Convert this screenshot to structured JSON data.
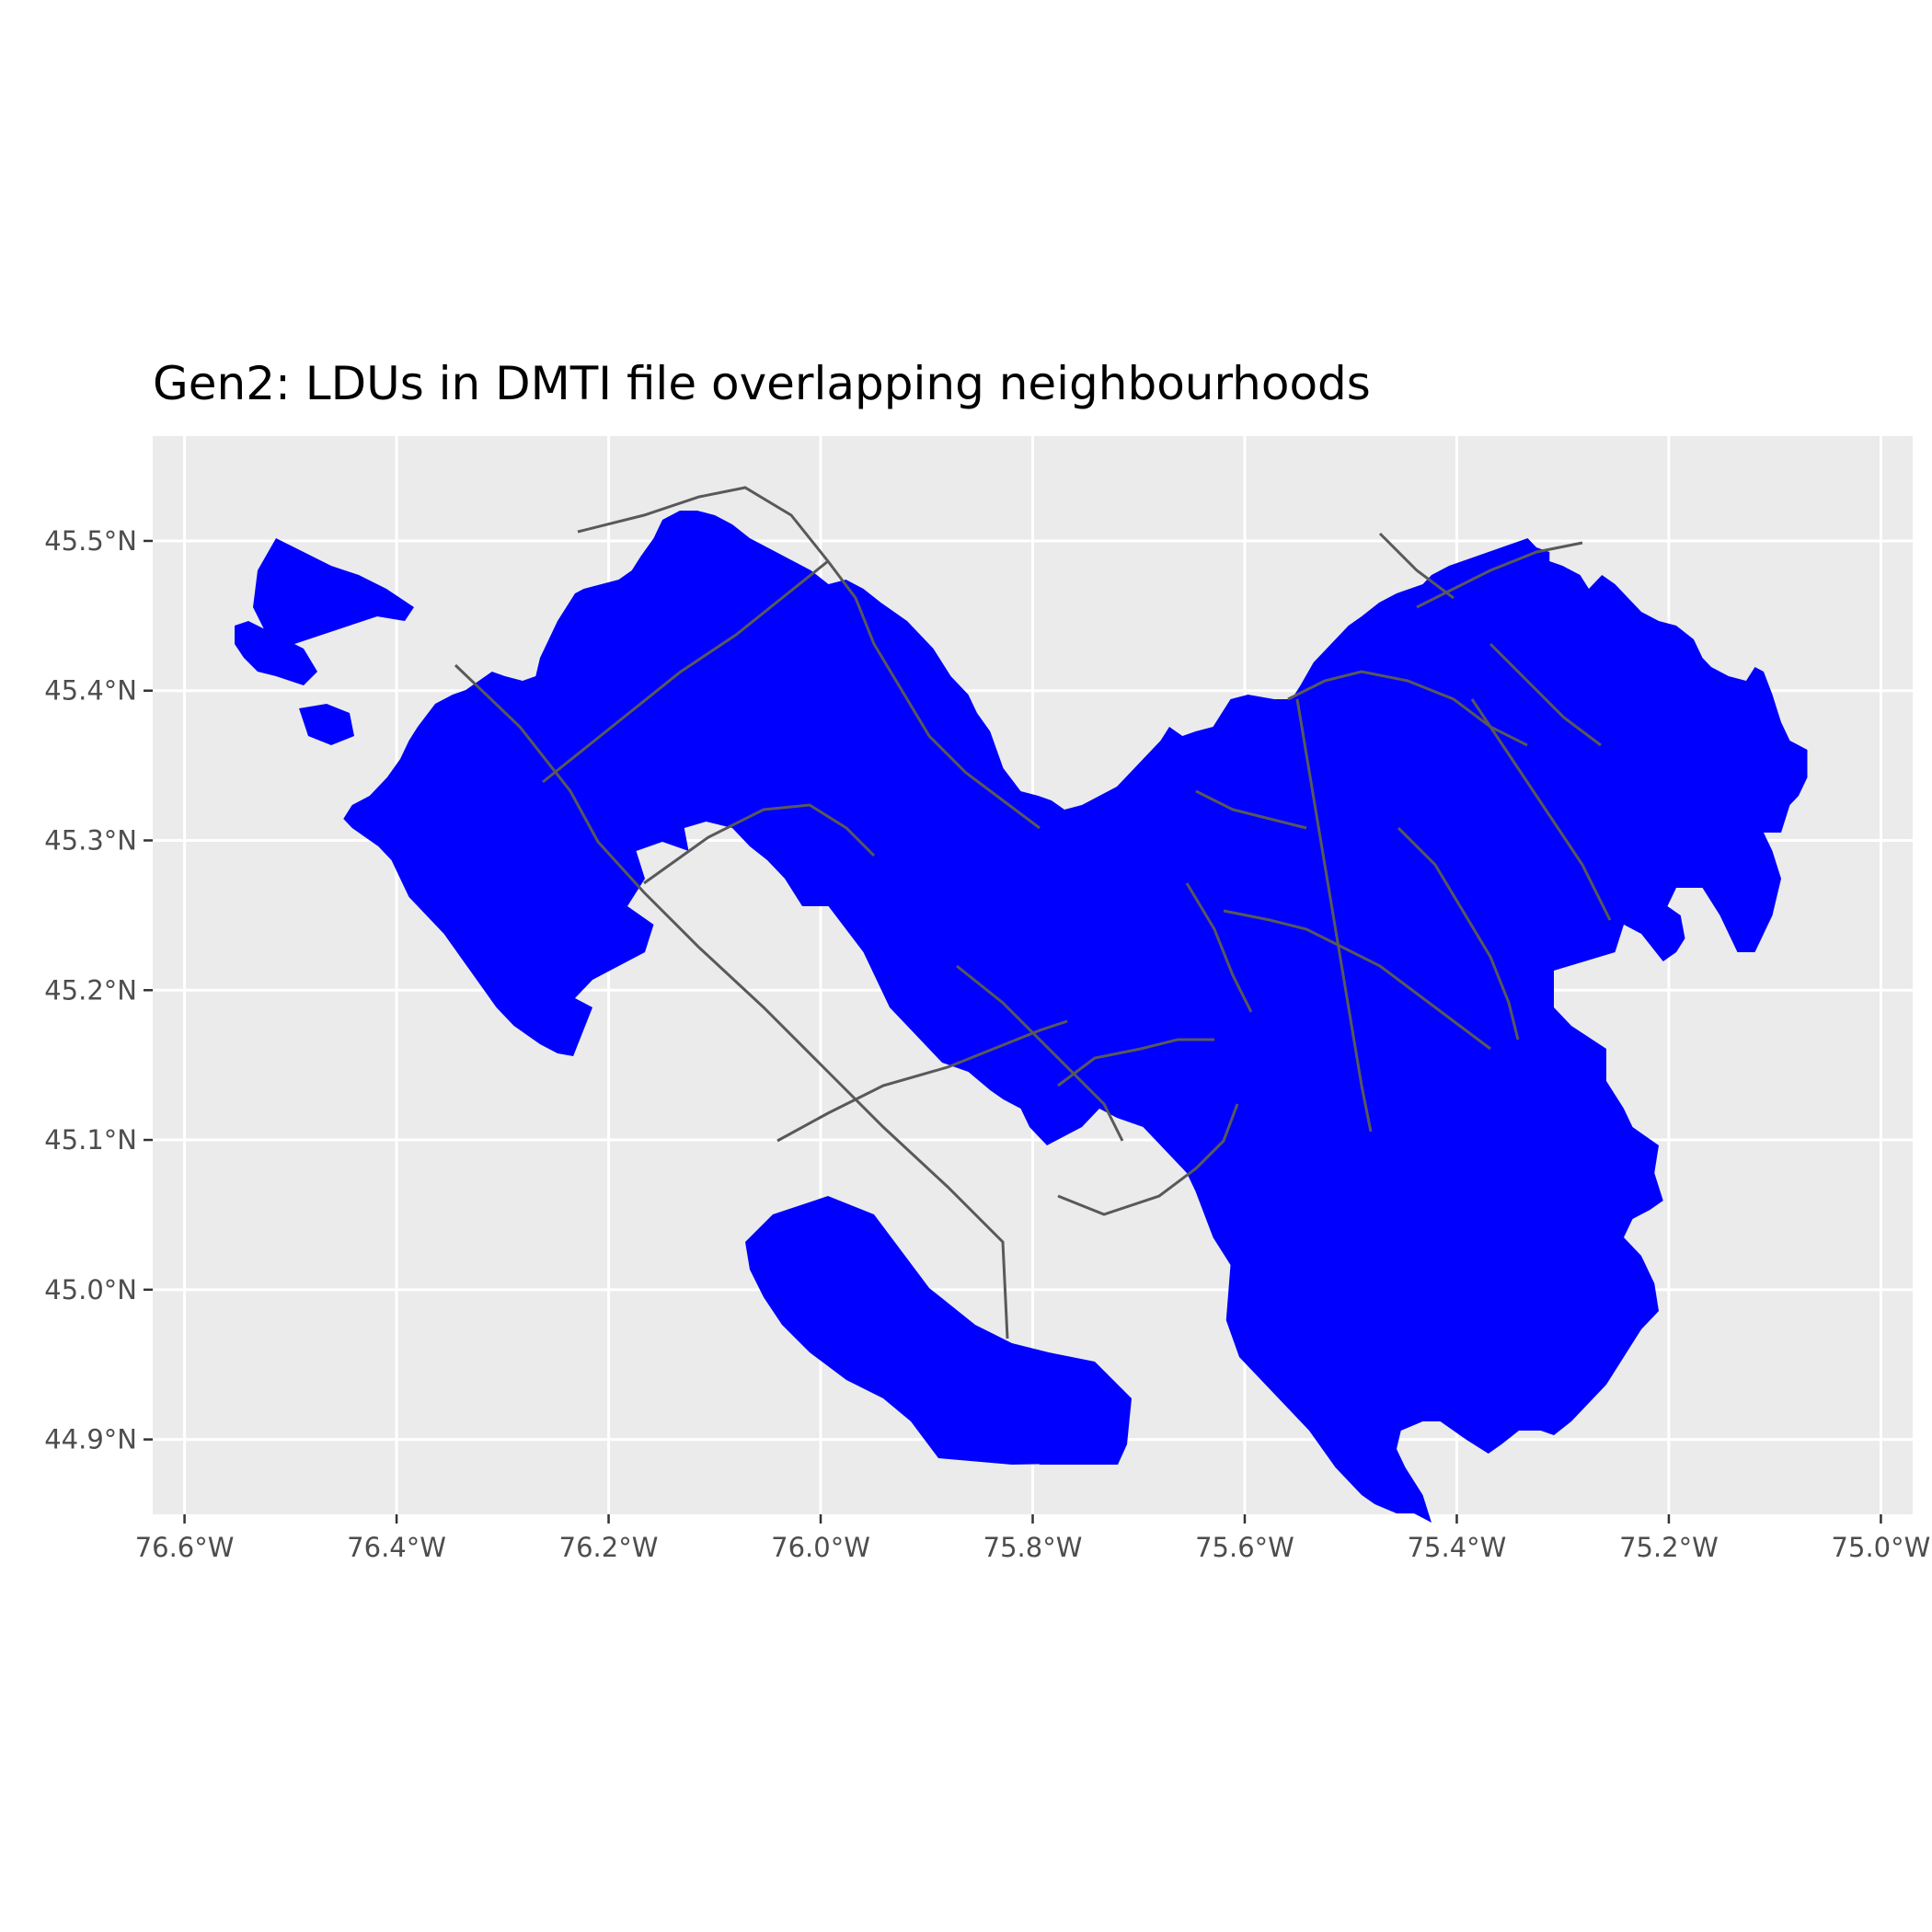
{
  "title": "Gen2: LDUs in DMTI file overlapping neighbourhoods",
  "colors": {
    "panel_background": "#ebebeb",
    "grid": "#ffffff",
    "fill": "#0000ff",
    "boundary": "#595959",
    "axis_text": "#4d4d4d"
  },
  "axes": {
    "x_ticks": [
      "76.6°W",
      "76.4°W",
      "76.2°W",
      "76.0°W",
      "75.8°W",
      "75.6°W",
      "75.4°W",
      "75.2°W",
      "75.0°W"
    ],
    "y_ticks": [
      "45.5°N",
      "45.4°N",
      "45.3°N",
      "45.2°N",
      "45.1°N",
      "45.0°N",
      "44.9°N"
    ],
    "x_range": [
      -76.63,
      -74.97
    ],
    "y_range": [
      44.85,
      45.57
    ]
  }
}
